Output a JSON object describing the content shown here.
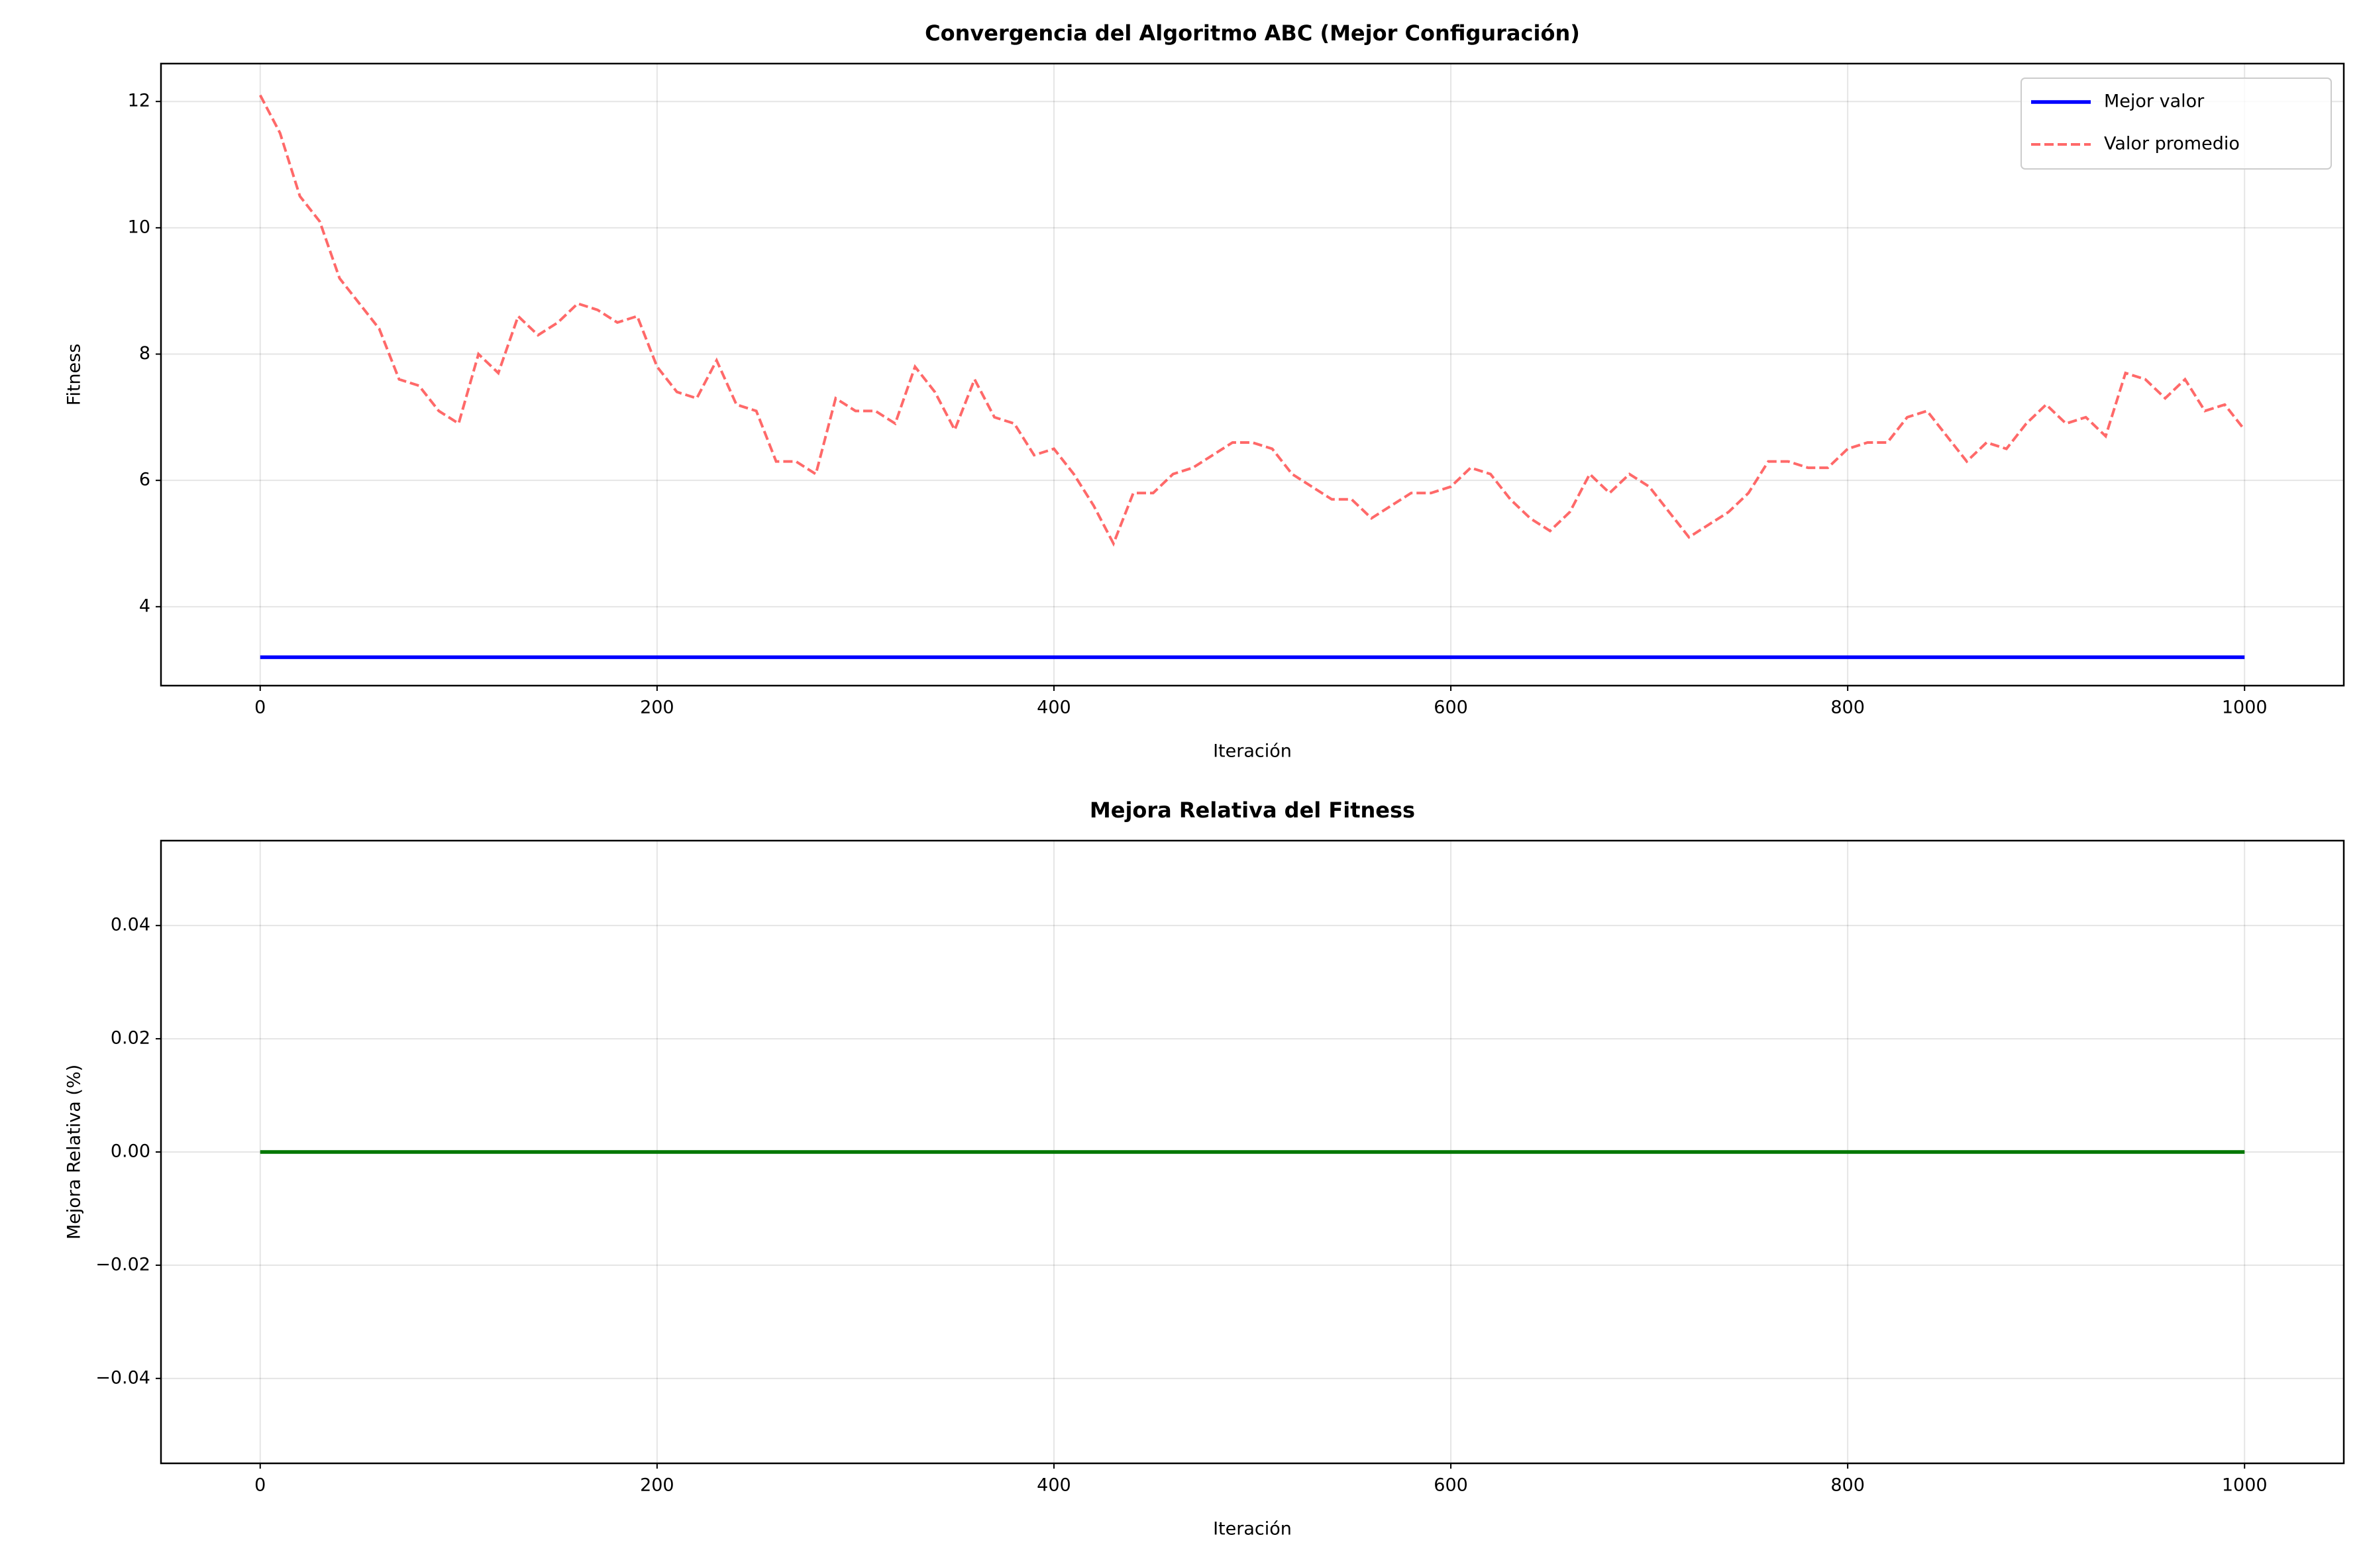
{
  "chart_data": [
    {
      "type": "line",
      "title": "Convergencia del Algoritmo ABC (Mejor Configuración)",
      "x_label": "Iteración",
      "y_label": "Fitness",
      "x": [
        0,
        10,
        20,
        30,
        40,
        50,
        60,
        70,
        80,
        90,
        100,
        110,
        120,
        130,
        140,
        150,
        160,
        170,
        180,
        190,
        200,
        210,
        220,
        230,
        240,
        250,
        260,
        270,
        280,
        290,
        300,
        310,
        320,
        330,
        340,
        350,
        360,
        370,
        380,
        390,
        400,
        410,
        420,
        430,
        440,
        450,
        460,
        470,
        480,
        490,
        500,
        510,
        520,
        530,
        540,
        550,
        560,
        570,
        580,
        590,
        600,
        610,
        620,
        630,
        640,
        650,
        660,
        670,
        680,
        690,
        700,
        710,
        720,
        730,
        740,
        750,
        760,
        770,
        780,
        790,
        800,
        810,
        820,
        830,
        840,
        850,
        860,
        870,
        880,
        890,
        900,
        910,
        920,
        930,
        940,
        950,
        960,
        970,
        980,
        990,
        1000
      ],
      "series": [
        {
          "name": "Mejor valor",
          "color": "#0000ff",
          "linestyle": "solid",
          "values": [
            3.2,
            3.2,
            3.2,
            3.2,
            3.2,
            3.2,
            3.2,
            3.2,
            3.2,
            3.2,
            3.2,
            3.2,
            3.2,
            3.2,
            3.2,
            3.2,
            3.2,
            3.2,
            3.2,
            3.2,
            3.2,
            3.2,
            3.2,
            3.2,
            3.2,
            3.2,
            3.2,
            3.2,
            3.2,
            3.2,
            3.2,
            3.2,
            3.2,
            3.2,
            3.2,
            3.2,
            3.2,
            3.2,
            3.2,
            3.2,
            3.2,
            3.2,
            3.2,
            3.2,
            3.2,
            3.2,
            3.2,
            3.2,
            3.2,
            3.2,
            3.2,
            3.2,
            3.2,
            3.2,
            3.2,
            3.2,
            3.2,
            3.2,
            3.2,
            3.2,
            3.2,
            3.2,
            3.2,
            3.2,
            3.2,
            3.2,
            3.2,
            3.2,
            3.2,
            3.2,
            3.2,
            3.2,
            3.2,
            3.2,
            3.2,
            3.2,
            3.2,
            3.2,
            3.2,
            3.2,
            3.2,
            3.2,
            3.2,
            3.2,
            3.2,
            3.2,
            3.2,
            3.2,
            3.2,
            3.2,
            3.2,
            3.2,
            3.2,
            3.2,
            3.2,
            3.2,
            3.2,
            3.2,
            3.2,
            3.2,
            3.2
          ]
        },
        {
          "name": "Valor promedio",
          "color": "#ff4444",
          "linestyle": "dashed",
          "values": [
            12.1,
            11.5,
            10.5,
            10.1,
            9.2,
            8.8,
            8.4,
            7.6,
            7.5,
            7.1,
            6.9,
            8.0,
            7.7,
            8.6,
            8.3,
            8.5,
            8.8,
            8.7,
            8.5,
            8.6,
            7.8,
            7.4,
            7.3,
            7.9,
            7.2,
            7.1,
            6.3,
            6.3,
            6.1,
            7.3,
            7.1,
            7.1,
            6.9,
            7.8,
            7.4,
            6.8,
            7.6,
            7.0,
            6.9,
            6.4,
            6.5,
            6.1,
            5.6,
            5.0,
            5.8,
            5.8,
            6.1,
            6.2,
            6.4,
            6.6,
            6.6,
            6.5,
            6.1,
            5.9,
            5.7,
            5.7,
            5.4,
            5.6,
            5.8,
            5.8,
            5.9,
            6.2,
            6.1,
            5.7,
            5.4,
            5.2,
            5.5,
            6.1,
            5.8,
            6.1,
            5.9,
            5.5,
            5.1,
            5.3,
            5.5,
            5.8,
            6.3,
            6.3,
            6.2,
            6.2,
            6.5,
            6.6,
            6.6,
            7.0,
            7.1,
            6.7,
            6.3,
            6.6,
            6.5,
            6.9,
            7.2,
            6.9,
            7.0,
            6.7,
            7.7,
            7.6,
            7.3,
            7.6,
            7.1,
            7.2,
            6.8
          ]
        }
      ],
      "xlim": [
        -50,
        1050
      ],
      "xticks": [
        0,
        200,
        400,
        600,
        800,
        1000
      ],
      "ylim": [
        2.75,
        12.6
      ],
      "yticks": [
        4,
        6,
        8,
        10,
        12
      ],
      "grid": true,
      "legend": "upper right"
    },
    {
      "type": "line",
      "title": "Mejora Relativa del Fitness",
      "x_label": "Iteración",
      "y_label": "Mejora Relativa (%)",
      "x": [
        0,
        1000
      ],
      "values": [
        0,
        0
      ],
      "color": "#007700",
      "xlim": [
        -50,
        1050
      ],
      "xticks": [
        0,
        200,
        400,
        600,
        800,
        1000
      ],
      "ylim": [
        -0.055,
        0.055
      ],
      "yticks": [
        {
          "value": -0.04,
          "label": "−0.04"
        },
        {
          "value": -0.02,
          "label": "−0.02"
        },
        {
          "value": 0,
          "label": "0.00"
        },
        0.02,
        0.04
      ],
      "grid": true
    }
  ]
}
